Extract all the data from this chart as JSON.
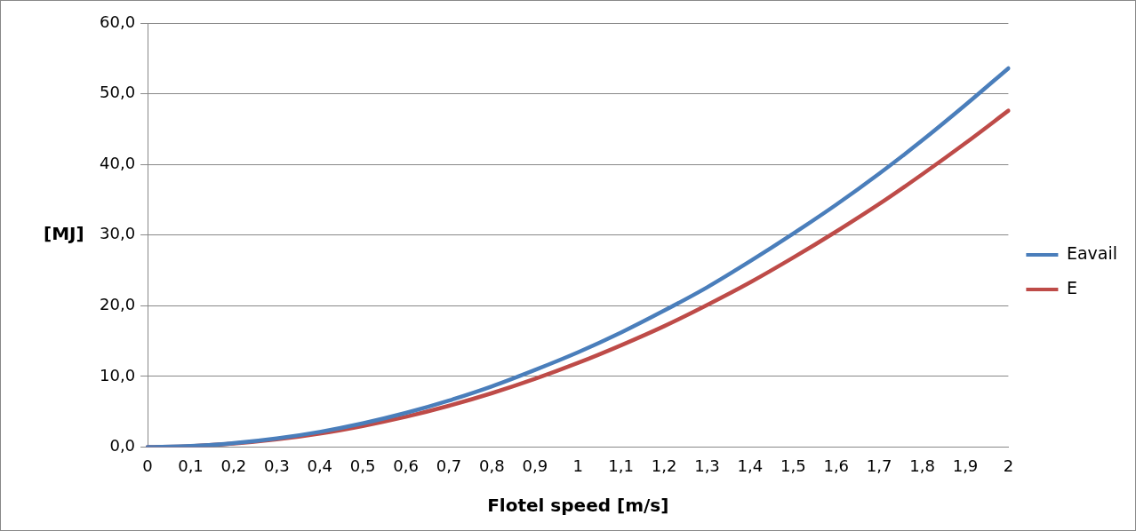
{
  "chart_data": {
    "type": "line",
    "xlabel": "Flotel speed [m/s]",
    "ylabel": "[MJ]",
    "categories": [
      "0",
      "0,1",
      "0,2",
      "0,3",
      "0,4",
      "0,5",
      "0,6",
      "0,7",
      "0,8",
      "0,9",
      "1",
      "1,1",
      "1,2",
      "1,3",
      "1,4",
      "1,5",
      "1,6",
      "1,7",
      "1,8",
      "1,9",
      "2"
    ],
    "series": [
      {
        "name": "Eavail",
        "color": "#4a7ebb",
        "values": [
          0,
          0.13,
          0.54,
          1.21,
          2.14,
          3.35,
          4.82,
          6.57,
          8.58,
          10.9,
          13.4,
          16.2,
          19.3,
          22.6,
          26.3,
          30.2,
          34.3,
          38.7,
          43.4,
          48.4,
          53.6
        ]
      },
      {
        "name": "E",
        "color": "#be4b48",
        "values": [
          0,
          0.12,
          0.48,
          1.07,
          1.9,
          2.98,
          4.28,
          5.83,
          7.62,
          9.64,
          11.9,
          14.4,
          17.1,
          20.1,
          23.3,
          26.8,
          30.5,
          34.4,
          38.6,
          43.0,
          47.6
        ]
      }
    ],
    "ylim": [
      0,
      60
    ],
    "yticks": [
      {
        "value": 0,
        "label": "0,0"
      },
      {
        "value": 10,
        "label": "10,0"
      },
      {
        "value": 20,
        "label": "20,0"
      },
      {
        "value": 30,
        "label": "30,0"
      },
      {
        "value": 40,
        "label": "40,0"
      },
      {
        "value": 50,
        "label": "50,0"
      },
      {
        "value": 60,
        "label": "60,0"
      }
    ],
    "grid": "y",
    "legend": "right",
    "marker": "none",
    "line_style": "solid"
  }
}
